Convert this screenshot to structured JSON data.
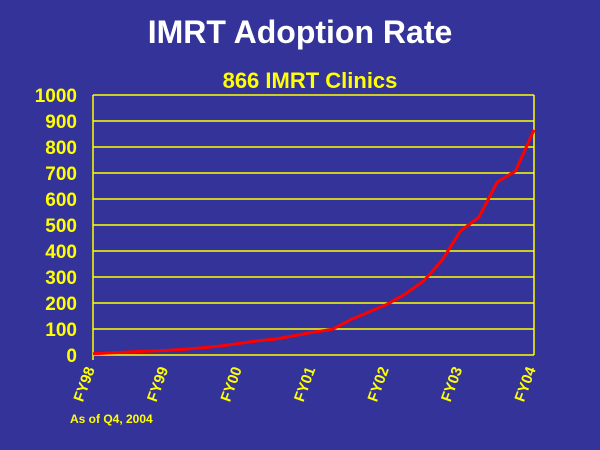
{
  "chart_data": {
    "type": "line",
    "title": "IMRT Adoption Rate",
    "subtitle": "866 IMRT Clinics",
    "note": "As of Q4, 2004",
    "xlabel": "",
    "ylabel": "",
    "ylim": [
      0,
      1000
    ],
    "yticks": [
      0,
      100,
      200,
      300,
      400,
      500,
      600,
      700,
      800,
      900,
      1000
    ],
    "xtick_labels": [
      "FY98",
      "FY99",
      "FY00",
      "FY01",
      "FY02",
      "FY03",
      "FY04"
    ],
    "x_quarter_index": [
      0,
      1,
      2,
      3,
      4,
      5,
      6,
      7,
      8,
      9,
      10,
      11,
      12,
      13,
      14,
      15,
      16,
      17,
      18,
      19,
      20,
      21,
      22,
      23,
      24
    ],
    "series": [
      {
        "name": "IMRT Clinics",
        "color": "#ff0000",
        "values": [
          5,
          8,
          12,
          15,
          18,
          22,
          28,
          35,
          45,
          55,
          62,
          75,
          88,
          98,
          135,
          165,
          195,
          235,
          285,
          365,
          477,
          530,
          665,
          708,
          866
        ]
      }
    ],
    "grid": true,
    "colors": {
      "background": "#333399",
      "axis": "#ffff00",
      "text": "#ffff00"
    }
  }
}
